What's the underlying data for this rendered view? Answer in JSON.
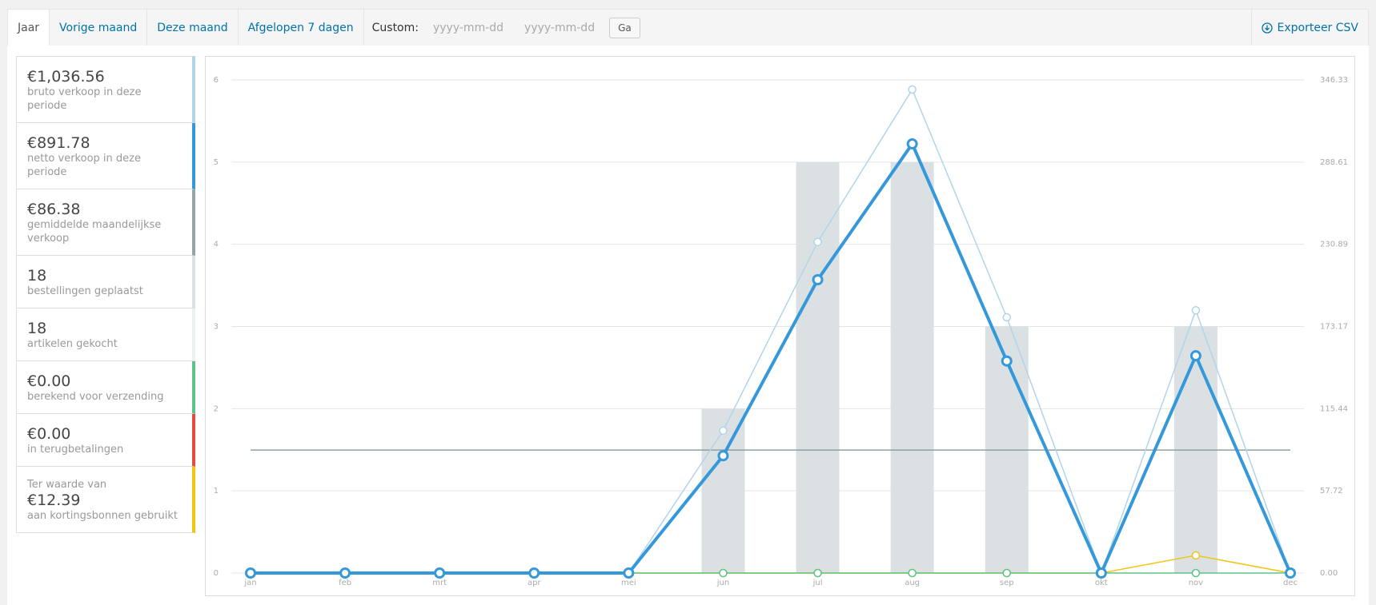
{
  "tabs": [
    "Jaar",
    "Vorige maand",
    "Deze maand",
    "Afgelopen 7 dagen"
  ],
  "custom": {
    "label": "Custom:",
    "start_placeholder": "yyyy-mm-dd",
    "end_placeholder": "yyyy-mm-dd",
    "button": "Ga"
  },
  "export": "Exporteer CSV",
  "summary": [
    {
      "value": "€1,036.56",
      "label": "bruto verkoop in deze periode",
      "color": "#b1d4ea"
    },
    {
      "value": "€891.78",
      "label": "netto verkoop in deze periode",
      "color": "#3498db"
    },
    {
      "value": "€86.38",
      "label": "gemiddelde maandelijkse verkoop",
      "color": "#95a5a6"
    },
    {
      "value": "18",
      "label": "bestellingen geplaatst",
      "color": "#dbe1e3"
    },
    {
      "value": "18",
      "label": "artikelen gekocht",
      "color": "#ecf0f1"
    },
    {
      "value": "€0.00",
      "label": "berekend voor verzending",
      "color": "#5cc488"
    },
    {
      "value": "€0.00",
      "label": "in terugbetalingen",
      "color": "#e74c3c"
    },
    {
      "prefix": "Ter waarde van",
      "value": "€12.39",
      "label": "aan kortingsbonnen gebruikt",
      "color": "#f1c40f"
    }
  ],
  "chart_data": {
    "type": "line",
    "categories": [
      "jan",
      "feb",
      "mrt",
      "apr",
      "mei",
      "jun",
      "jul",
      "aug",
      "sep",
      "okt",
      "nov",
      "dec"
    ],
    "ylim": [
      0,
      6
    ],
    "yticks": [
      0,
      1,
      2,
      3,
      4,
      5,
      6
    ],
    "y2lim": [
      0,
      346.33
    ],
    "y2ticks": [
      {
        "value": 0,
        "label": "0.00"
      },
      {
        "value": 57.72,
        "label": "57.72"
      },
      {
        "value": 115.44,
        "label": "115.44"
      },
      {
        "value": 173.17,
        "label": "173.17"
      },
      {
        "value": 230.89,
        "label": "230.89"
      },
      {
        "value": 288.61,
        "label": "288.61"
      },
      {
        "value": 346.33,
        "label": "346.33"
      }
    ],
    "grid": true,
    "average": {
      "value": 86.38,
      "color": "#8fa0a1",
      "axis": "y2"
    },
    "series": [
      {
        "kind": "bar",
        "color": "#dbe1e3",
        "values": [
          0,
          0,
          0,
          0,
          0,
          2,
          5,
          5,
          3,
          0,
          3,
          0
        ]
      },
      {
        "kind": "line",
        "axis": "y2",
        "color": "#f1c40f",
        "values": [
          0,
          0,
          0,
          0,
          0,
          0,
          0,
          0,
          0,
          0,
          12.39,
          0
        ]
      },
      {
        "kind": "line",
        "axis": "y2",
        "color": "#5cc488",
        "values": [
          0,
          0,
          0,
          0,
          0,
          0,
          0,
          0,
          0,
          0,
          0,
          0
        ]
      },
      {
        "kind": "line",
        "axis": "y2",
        "color": "#b1d4ea",
        "values": [
          0,
          0,
          0,
          0,
          0,
          100,
          232.5,
          339.6,
          179.6,
          0,
          184.5,
          0
        ]
      },
      {
        "kind": "line",
        "axis": "y2",
        "color": "#3498db",
        "width": 4,
        "values": [
          0,
          0,
          0,
          0,
          0,
          82.4,
          206,
          301.4,
          148.9,
          0,
          152.6,
          0
        ]
      }
    ]
  }
}
